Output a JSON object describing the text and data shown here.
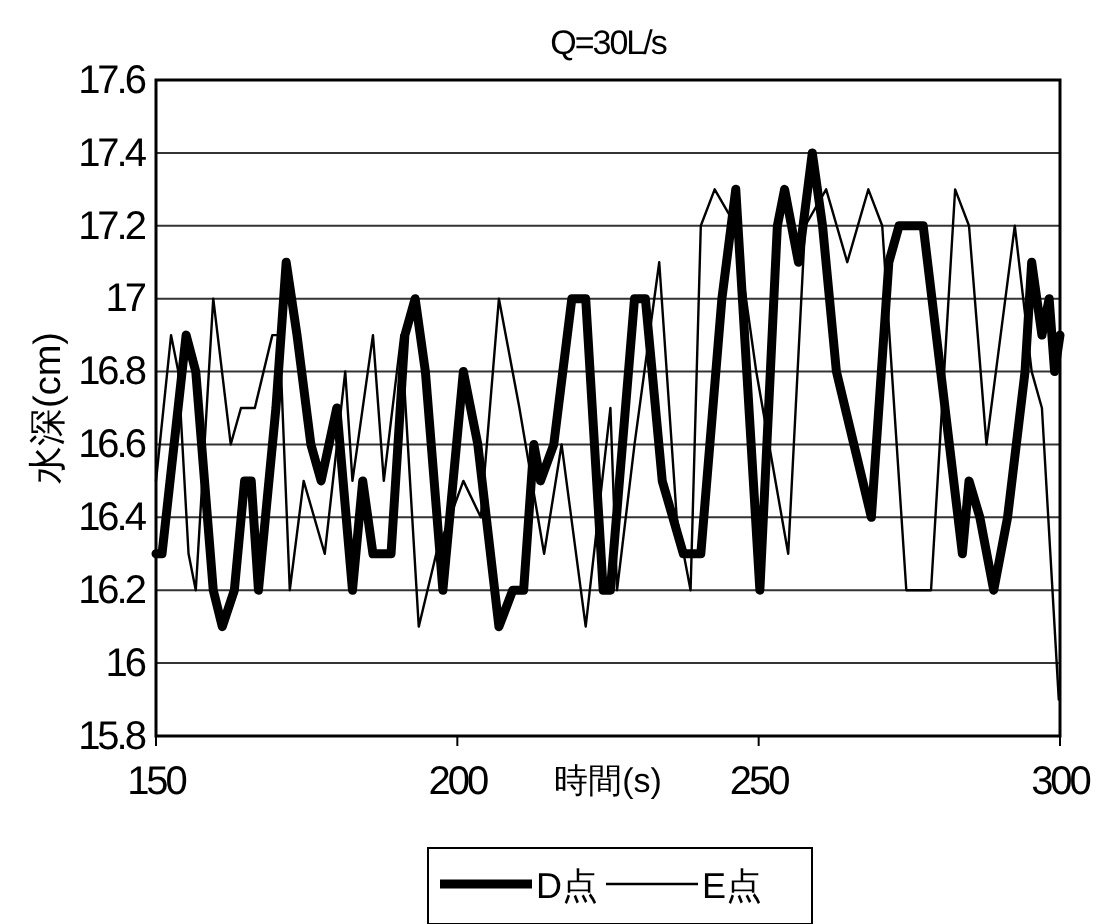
{
  "chart_data": {
    "type": "line",
    "title": "Q=30L/s",
    "xlabel": "時間(s)",
    "ylabel": "水深(cm)",
    "xlim": [
      150,
      300
    ],
    "xticks": [
      150,
      200,
      250,
      300
    ],
    "ylim": [
      15.8,
      17.6
    ],
    "yticks": [
      {
        "value": 15.8,
        "label": "15.8"
      },
      {
        "value": 16,
        "label": "16"
      },
      {
        "value": 16.2,
        "label": "16.2"
      },
      {
        "value": 16.4,
        "label": "16.4"
      },
      {
        "value": 16.6,
        "label": "16.6"
      },
      {
        "value": 16.8,
        "label": "16.8"
      },
      {
        "value": 17,
        "label": "17"
      },
      {
        "value": 17.2,
        "label": "17.2"
      },
      {
        "value": 17.4,
        "label": "17.4"
      },
      {
        "value": 17.6,
        "label": "17.6"
      }
    ],
    "grid": "y",
    "legend": "bottom",
    "marker": "none",
    "series": [
      {
        "name": "D点",
        "color": "#000000",
        "x": [
          150,
          151,
          155,
          156.6,
          159.5,
          161,
          163,
          164.7,
          165.8,
          167,
          169.9,
          171.6,
          173.4,
          175.7,
          177.4,
          180,
          182.6,
          184.3,
          186,
          189,
          191.3,
          193,
          194.7,
          197.6,
          201,
          203.4,
          206.9,
          209.2,
          211,
          212.7,
          213.8,
          216,
          219,
          221.3,
          224.2,
          225.4,
          229.4,
          231.2,
          234,
          237.5,
          240.4,
          243.9,
          246.2,
          247.3,
          250.2,
          253.1,
          254.3,
          256.6,
          258.9,
          260.6,
          262.9,
          265.8,
          268.7,
          271.6,
          273.3,
          277.3,
          280.2,
          283.8,
          284.9,
          286.7,
          289,
          291.3,
          294.2,
          295.3,
          297,
          298.2,
          299.1,
          300
        ],
        "values": [
          16.3,
          16.3,
          16.9,
          16.8,
          16.2,
          16.1,
          16.2,
          16.5,
          16.5,
          16.2,
          16.7,
          17.1,
          16.9,
          16.6,
          16.5,
          16.7,
          16.2,
          16.5,
          16.3,
          16.3,
          16.9,
          17.0,
          16.8,
          16.2,
          16.8,
          16.6,
          16.1,
          16.2,
          16.2,
          16.6,
          16.5,
          16.6,
          17.0,
          17.0,
          16.2,
          16.2,
          17.0,
          17.0,
          16.5,
          16.3,
          16.3,
          17.0,
          17.3,
          17.0,
          16.2,
          17.2,
          17.3,
          17.1,
          17.4,
          17.2,
          16.8,
          16.6,
          16.4,
          17.1,
          17.2,
          17.2,
          16.8,
          16.3,
          16.5,
          16.4,
          16.2,
          16.4,
          16.8,
          17.1,
          16.9,
          17.0,
          16.8,
          16.9
        ]
      },
      {
        "name": "E点",
        "color": "#000000",
        "x": [
          150,
          152.5,
          153.7,
          155.4,
          156.6,
          159.5,
          162.4,
          164.1,
          166.4,
          169.3,
          170.5,
          172.2,
          174.5,
          178,
          181.4,
          182.6,
          186,
          187.8,
          190.7,
          193.6,
          196.5,
          198.8,
          201,
          203.9,
          206.9,
          210.3,
          214.4,
          217.3,
          221.3,
          225.4,
          226.5,
          229.4,
          233.5,
          236.4,
          238.7,
          240.4,
          242.7,
          246.2,
          249.6,
          254.9,
          257.7,
          261.2,
          264.7,
          268.2,
          270.5,
          274.5,
          278.6,
          282.6,
          284.9,
          287.8,
          292.5,
          295.3,
          297,
          299.8
        ],
        "values": [
          16.5,
          16.9,
          16.8,
          16.3,
          16.2,
          17.0,
          16.6,
          16.7,
          16.7,
          16.9,
          16.9,
          16.2,
          16.5,
          16.3,
          16.8,
          16.5,
          16.9,
          16.5,
          16.9,
          16.1,
          16.3,
          16.4,
          16.5,
          16.4,
          17.0,
          16.7,
          16.3,
          16.6,
          16.1,
          16.7,
          16.2,
          16.6,
          17.1,
          16.4,
          16.2,
          17.2,
          17.3,
          17.2,
          16.8,
          16.3,
          17.2,
          17.3,
          17.1,
          17.3,
          17.2,
          16.2,
          16.2,
          17.3,
          17.2,
          16.6,
          17.2,
          16.8,
          16.7,
          15.9
        ]
      }
    ]
  }
}
